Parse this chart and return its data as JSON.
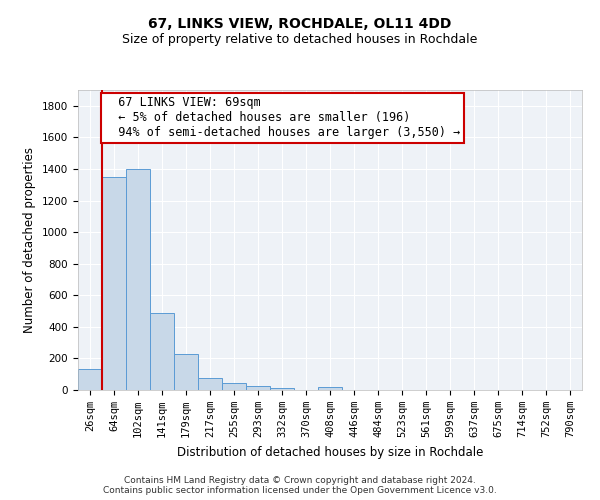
{
  "title": "67, LINKS VIEW, ROCHDALE, OL11 4DD",
  "subtitle": "Size of property relative to detached houses in Rochdale",
  "xlabel": "Distribution of detached houses by size in Rochdale",
  "ylabel": "Number of detached properties",
  "bar_color": "#c8d8e8",
  "bar_edge_color": "#5b9bd5",
  "vline_color": "#cc0000",
  "categories": [
    "26sqm",
    "64sqm",
    "102sqm",
    "141sqm",
    "179sqm",
    "217sqm",
    "255sqm",
    "293sqm",
    "332sqm",
    "370sqm",
    "408sqm",
    "446sqm",
    "484sqm",
    "523sqm",
    "561sqm",
    "599sqm",
    "637sqm",
    "675sqm",
    "714sqm",
    "752sqm",
    "790sqm"
  ],
  "values": [
    135,
    1350,
    1400,
    490,
    225,
    75,
    43,
    28,
    15,
    0,
    18,
    0,
    0,
    0,
    0,
    0,
    0,
    0,
    0,
    0,
    0
  ],
  "ylim": [
    0,
    1900
  ],
  "yticks": [
    0,
    200,
    400,
    600,
    800,
    1000,
    1200,
    1400,
    1600,
    1800
  ],
  "annotation_text": "  67 LINKS VIEW: 69sqm\n  ← 5% of detached houses are smaller (196)\n  94% of semi-detached houses are larger (3,550) →",
  "footer": "Contains HM Land Registry data © Crown copyright and database right 2024.\nContains public sector information licensed under the Open Government Licence v3.0.",
  "bg_color": "#eef2f7",
  "grid_color": "#ffffff",
  "title_fontsize": 10,
  "subtitle_fontsize": 9,
  "xlabel_fontsize": 8.5,
  "ylabel_fontsize": 8.5,
  "tick_fontsize": 7.5,
  "annotation_fontsize": 8.5,
  "footer_fontsize": 6.5
}
